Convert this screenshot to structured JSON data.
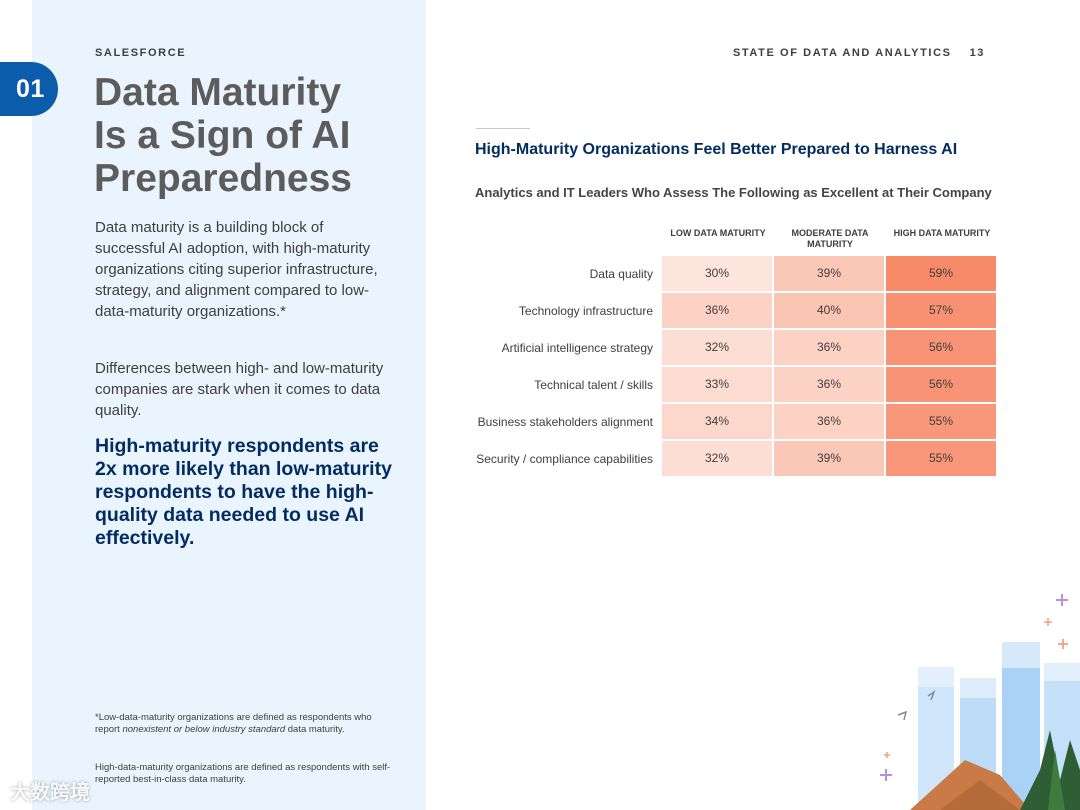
{
  "header": {
    "brand": "SALESFORCE",
    "report_title": "STATE OF DATA AND ANALYTICS",
    "page_number": "13",
    "chapter": "01"
  },
  "left": {
    "title_lines": [
      "Data Maturity",
      "Is a Sign of AI",
      "Preparedness"
    ],
    "paragraph1": "Data maturity is a building block of successful AI adoption, with high-maturity organizations citing superior infrastructure, strategy, and alignment compared to low-data-maturity organizations.*",
    "paragraph2": "Differences between high- and low-maturity companies are stark when it comes to data quality.",
    "highlight": "High-maturity respondents are 2x more likely than low-maturity respondents to have the high-quality data needed to use AI effectively.",
    "footnote1": {
      "before": "*Low-data-maturity organizations are defined as respondents who report ",
      "italic": "nonexistent or below industry standard",
      "after": " data maturity."
    },
    "footnote2": "High-data-maturity organizations are defined as respondents with self-reported best-in-class data maturity."
  },
  "chart_data": {
    "type": "table",
    "title": "High-Maturity Organizations Feel Better Prepared to Harness AI",
    "subtitle": "Analytics and IT Leaders Who Assess The Following as Excellent at Their Company",
    "columns": [
      "LOW DATA MATURITY",
      "MODERATE DATA MATURITY",
      "HIGH DATA MATURITY"
    ],
    "rows": [
      {
        "label": "Data quality",
        "values": [
          30,
          39,
          59
        ]
      },
      {
        "label": "Technology infrastructure",
        "values": [
          36,
          40,
          57
        ]
      },
      {
        "label": "Artificial intelligence strategy",
        "values": [
          32,
          36,
          56
        ]
      },
      {
        "label": "Technical talent / skills",
        "values": [
          33,
          36,
          56
        ]
      },
      {
        "label": "Business stakeholders alignment",
        "values": [
          34,
          36,
          55
        ]
      },
      {
        "label": "Security / compliance capabilities",
        "values": [
          32,
          39,
          55
        ]
      }
    ],
    "unit": "%",
    "color_low": "#fde4dc",
    "color_high": "#f78b69"
  },
  "watermark": "大数跨境",
  "colors": {
    "accent": "#0b5cab",
    "navy": "#032d60",
    "panel": "#eaf4fe"
  }
}
